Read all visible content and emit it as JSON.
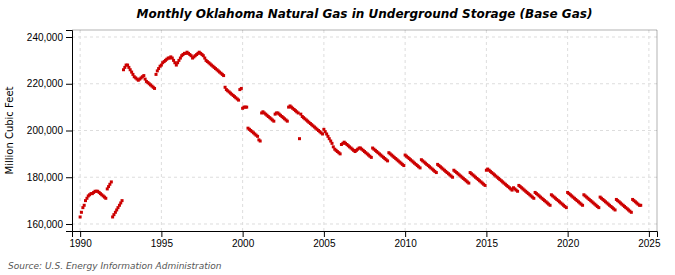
{
  "chart_data": {
    "type": "scatter",
    "title": "Monthly Oklahoma Natural Gas in Underground Storage (Base Gas)",
    "ylabel": "Million Cubic Feet",
    "annotations": [
      "Source: U.S. Energy Information Administration"
    ],
    "color": "#cc0000",
    "marker": "square",
    "grid": true,
    "xlim": [
      1989.5,
      2025.5
    ],
    "ylim": [
      157000,
      243000
    ],
    "xticks": [
      1990,
      1995,
      2000,
      2005,
      2010,
      2015,
      2020,
      2025
    ],
    "yticks": [
      {
        "value": 160000,
        "label": "160,000"
      },
      {
        "value": 180000,
        "label": "180,000"
      },
      {
        "value": 200000,
        "label": "200,000"
      },
      {
        "value": 220000,
        "label": "220,000"
      },
      {
        "value": 240000,
        "label": "240,000"
      }
    ],
    "x": [
      1990.0,
      1990.08,
      1990.17,
      1990.25,
      1990.33,
      1990.42,
      1990.5,
      1990.58,
      1990.67,
      1990.75,
      1990.83,
      1990.92,
      1991.0,
      1991.08,
      1991.17,
      1991.25,
      1991.33,
      1991.42,
      1991.5,
      1991.58,
      1991.67,
      1991.75,
      1991.83,
      1991.92,
      1992.0,
      1992.08,
      1992.17,
      1992.25,
      1992.33,
      1992.42,
      1992.5,
      1992.58,
      1992.67,
      1992.75,
      1992.83,
      1992.92,
      1993.0,
      1993.08,
      1993.17,
      1993.25,
      1993.33,
      1993.42,
      1993.5,
      1993.58,
      1993.67,
      1993.75,
      1993.83,
      1993.92,
      1994.0,
      1994.08,
      1994.17,
      1994.25,
      1994.33,
      1994.42,
      1994.5,
      1994.58,
      1994.67,
      1994.75,
      1994.83,
      1994.92,
      1995.0,
      1995.08,
      1995.17,
      1995.25,
      1995.33,
      1995.42,
      1995.5,
      1995.58,
      1995.67,
      1995.75,
      1995.83,
      1995.92,
      1996.0,
      1996.08,
      1996.17,
      1996.25,
      1996.33,
      1996.42,
      1996.5,
      1996.58,
      1996.67,
      1996.75,
      1996.83,
      1996.92,
      1997.0,
      1997.08,
      1997.17,
      1997.25,
      1997.33,
      1997.42,
      1997.5,
      1997.58,
      1997.67,
      1997.75,
      1997.83,
      1997.92,
      1998.0,
      1998.08,
      1998.17,
      1998.25,
      1998.33,
      1998.42,
      1998.5,
      1998.58,
      1998.67,
      1998.75,
      1998.83,
      1998.92,
      1999.0,
      1999.08,
      1999.17,
      1999.25,
      1999.33,
      1999.42,
      1999.5,
      1999.58,
      1999.67,
      1999.75,
      1999.83,
      1999.92,
      2000.0,
      2000.08,
      2000.17,
      2000.25,
      2000.33,
      2000.42,
      2000.5,
      2000.58,
      2000.67,
      2000.75,
      2000.83,
      2000.92,
      2001.0,
      2001.08,
      2001.17,
      2001.25,
      2001.33,
      2001.42,
      2001.5,
      2001.58,
      2001.67,
      2001.75,
      2001.83,
      2001.92,
      2002.0,
      2002.08,
      2002.17,
      2002.25,
      2002.33,
      2002.42,
      2002.5,
      2002.58,
      2002.67,
      2002.75,
      2002.83,
      2002.92,
      2003.0,
      2003.08,
      2003.17,
      2003.25,
      2003.33,
      2003.42,
      2003.5,
      2003.58,
      2003.67,
      2003.75,
      2003.83,
      2003.92,
      2004.0,
      2004.08,
      2004.17,
      2004.25,
      2004.33,
      2004.42,
      2004.5,
      2004.58,
      2004.67,
      2004.75,
      2004.83,
      2004.92,
      2005.0,
      2005.08,
      2005.17,
      2005.25,
      2005.33,
      2005.42,
      2005.5,
      2005.58,
      2005.67,
      2005.75,
      2005.83,
      2005.92,
      2006.0,
      2006.08,
      2006.17,
      2006.25,
      2006.33,
      2006.42,
      2006.5,
      2006.58,
      2006.67,
      2006.75,
      2006.83,
      2006.92,
      2007.0,
      2007.08,
      2007.17,
      2007.25,
      2007.33,
      2007.42,
      2007.5,
      2007.58,
      2007.67,
      2007.75,
      2007.83,
      2007.92,
      2008.0,
      2008.08,
      2008.17,
      2008.25,
      2008.33,
      2008.42,
      2008.5,
      2008.58,
      2008.67,
      2008.75,
      2008.83,
      2008.92,
      2009.0,
      2009.08,
      2009.17,
      2009.25,
      2009.33,
      2009.42,
      2009.5,
      2009.58,
      2009.67,
      2009.75,
      2009.83,
      2009.92,
      2010.0,
      2010.08,
      2010.17,
      2010.25,
      2010.33,
      2010.42,
      2010.5,
      2010.58,
      2010.67,
      2010.75,
      2010.83,
      2010.92,
      2011.0,
      2011.08,
      2011.17,
      2011.25,
      2011.33,
      2011.42,
      2011.5,
      2011.58,
      2011.67,
      2011.75,
      2011.83,
      2011.92,
      2012.0,
      2012.08,
      2012.17,
      2012.25,
      2012.33,
      2012.42,
      2012.5,
      2012.58,
      2012.67,
      2012.75,
      2012.83,
      2012.92,
      2013.0,
      2013.08,
      2013.17,
      2013.25,
      2013.33,
      2013.42,
      2013.5,
      2013.58,
      2013.67,
      2013.75,
      2013.83,
      2013.92,
      2014.0,
      2014.08,
      2014.17,
      2014.25,
      2014.33,
      2014.42,
      2014.5,
      2014.58,
      2014.67,
      2014.75,
      2014.83,
      2014.92,
      2015.0,
      2015.08,
      2015.17,
      2015.25,
      2015.33,
      2015.42,
      2015.5,
      2015.58,
      2015.67,
      2015.75,
      2015.83,
      2015.92,
      2016.0,
      2016.08,
      2016.17,
      2016.25,
      2016.33,
      2016.42,
      2016.5,
      2016.58,
      2016.67,
      2016.75,
      2016.83,
      2016.92,
      2017.0,
      2017.08,
      2017.17,
      2017.25,
      2017.33,
      2017.42,
      2017.5,
      2017.58,
      2017.67,
      2017.75,
      2017.83,
      2017.92,
      2018.0,
      2018.08,
      2018.17,
      2018.25,
      2018.33,
      2018.42,
      2018.5,
      2018.58,
      2018.67,
      2018.75,
      2018.83,
      2018.92,
      2019.0,
      2019.08,
      2019.17,
      2019.25,
      2019.33,
      2019.42,
      2019.5,
      2019.58,
      2019.67,
      2019.75,
      2019.83,
      2019.92,
      2020.0,
      2020.08,
      2020.17,
      2020.25,
      2020.33,
      2020.42,
      2020.5,
      2020.58,
      2020.67,
      2020.75,
      2020.83,
      2020.92,
      2021.0,
      2021.08,
      2021.17,
      2021.25,
      2021.33,
      2021.42,
      2021.5,
      2021.58,
      2021.67,
      2021.75,
      2021.83,
      2021.92,
      2022.0,
      2022.08,
      2022.17,
      2022.25,
      2022.33,
      2022.42,
      2022.5,
      2022.58,
      2022.67,
      2022.75,
      2022.83,
      2022.92,
      2023.0,
      2023.08,
      2023.17,
      2023.25,
      2023.33,
      2023.42,
      2023.5,
      2023.58,
      2023.67,
      2023.75,
      2023.83,
      2023.92,
      2024.0,
      2024.08,
      2024.17,
      2024.25,
      2024.33,
      2024.42,
      2024.5
    ],
    "values": [
      163000,
      165000,
      167000,
      168000,
      170000,
      171000,
      172000,
      172500,
      173000,
      173000,
      173500,
      174000,
      174000,
      174000,
      173500,
      173000,
      172500,
      172000,
      171500,
      171000,
      175000,
      176000,
      177000,
      178000,
      163000,
      164000,
      165000,
      166000,
      167000,
      168000,
      169000,
      170000,
      226000,
      227000,
      228000,
      228000,
      227000,
      226000,
      225000,
      224000,
      223000,
      222500,
      222000,
      221500,
      222000,
      222500,
      223000,
      223500,
      222000,
      221000,
      220500,
      220000,
      219500,
      219000,
      218500,
      218000,
      224000,
      225500,
      226500,
      227500,
      228000,
      229000,
      229500,
      230000,
      230500,
      231000,
      231000,
      231500,
      231000,
      230000,
      229000,
      228000,
      229000,
      230000,
      231000,
      232000,
      232500,
      233000,
      233000,
      233500,
      233000,
      232500,
      232000,
      231000,
      231500,
      232000,
      232500,
      233000,
      233500,
      233000,
      232500,
      232000,
      231000,
      230000,
      229500,
      229000,
      228500,
      228000,
      227500,
      227000,
      226500,
      226000,
      225500,
      225000,
      224500,
      224000,
      223500,
      218500,
      217500,
      217000,
      216500,
      216000,
      215500,
      215000,
      214500,
      214000,
      213500,
      213000,
      217500,
      218000,
      209500,
      210000,
      210000,
      210000,
      201000,
      200500,
      200000,
      199500,
      199000,
      198500,
      198000,
      197500,
      196000,
      195500,
      207500,
      208000,
      207500,
      207000,
      206500,
      206000,
      205500,
      205000,
      204500,
      204000,
      207000,
      207500,
      207500,
      207000,
      206500,
      206000,
      205500,
      205000,
      204500,
      204000,
      210000,
      210500,
      210000,
      209500,
      209000,
      208500,
      208000,
      207500,
      196500,
      207000,
      206000,
      205500,
      205000,
      204500,
      204000,
      203500,
      203000,
      202500,
      202000,
      201500,
      201000,
      200500,
      200000,
      199500,
      199000,
      198500,
      200500,
      199500,
      198500,
      197500,
      196500,
      195500,
      194500,
      193000,
      192000,
      191500,
      191000,
      190500,
      190000,
      194000,
      194500,
      195000,
      194500,
      194000,
      193500,
      193000,
      192500,
      192000,
      191500,
      191000,
      191500,
      192000,
      192500,
      192500,
      192000,
      191500,
      191000,
      190500,
      190000,
      189500,
      189000,
      188500,
      192500,
      192000,
      191500,
      191000,
      190500,
      190000,
      189500,
      189000,
      188500,
      188000,
      187500,
      187000,
      190500,
      190000,
      189500,
      189000,
      188500,
      188000,
      187500,
      187000,
      186500,
      186000,
      185500,
      185000,
      189500,
      189000,
      188500,
      188000,
      187500,
      187000,
      186500,
      186000,
      185500,
      185000,
      184500,
      184000,
      187500,
      187000,
      186500,
      186000,
      185500,
      185000,
      184500,
      184000,
      183500,
      183000,
      182500,
      182000,
      185500,
      185000,
      184500,
      184000,
      183500,
      183000,
      182500,
      182000,
      181500,
      181000,
      180500,
      180000,
      183000,
      182500,
      182000,
      181500,
      181000,
      180500,
      180000,
      179500,
      179000,
      178500,
      178000,
      177500,
      182000,
      181500,
      181000,
      180500,
      180000,
      179500,
      179000,
      178500,
      178000,
      177500,
      177000,
      176500,
      183000,
      183500,
      183000,
      182500,
      182000,
      181500,
      181000,
      180500,
      180000,
      179500,
      179000,
      178500,
      178000,
      177500,
      177000,
      176500,
      176000,
      175500,
      175000,
      174500,
      175500,
      175000,
      174500,
      174000,
      176500,
      176000,
      175500,
      175000,
      174500,
      174000,
      173500,
      173000,
      172500,
      172000,
      171500,
      171000,
      173500,
      173000,
      172500,
      172000,
      171500,
      171000,
      170500,
      170000,
      169500,
      169000,
      168500,
      168000,
      172500,
      172000,
      171500,
      171000,
      170500,
      170000,
      169500,
      169000,
      168500,
      168000,
      167500,
      167000,
      173500,
      173000,
      172500,
      172000,
      171500,
      171000,
      170500,
      170000,
      169500,
      169000,
      168500,
      168000,
      172500,
      172000,
      171500,
      171000,
      170500,
      170000,
      169500,
      169000,
      168500,
      168000,
      167500,
      167000,
      171500,
      171000,
      170500,
      170000,
      169500,
      169000,
      168500,
      168000,
      167500,
      167000,
      166500,
      166000,
      170500,
      170000,
      169500,
      169000,
      168500,
      168000,
      167500,
      167000,
      166500,
      166000,
      165500,
      165000,
      170500,
      170000,
      169500,
      169000,
      168500,
      168000,
      168000
    ]
  }
}
